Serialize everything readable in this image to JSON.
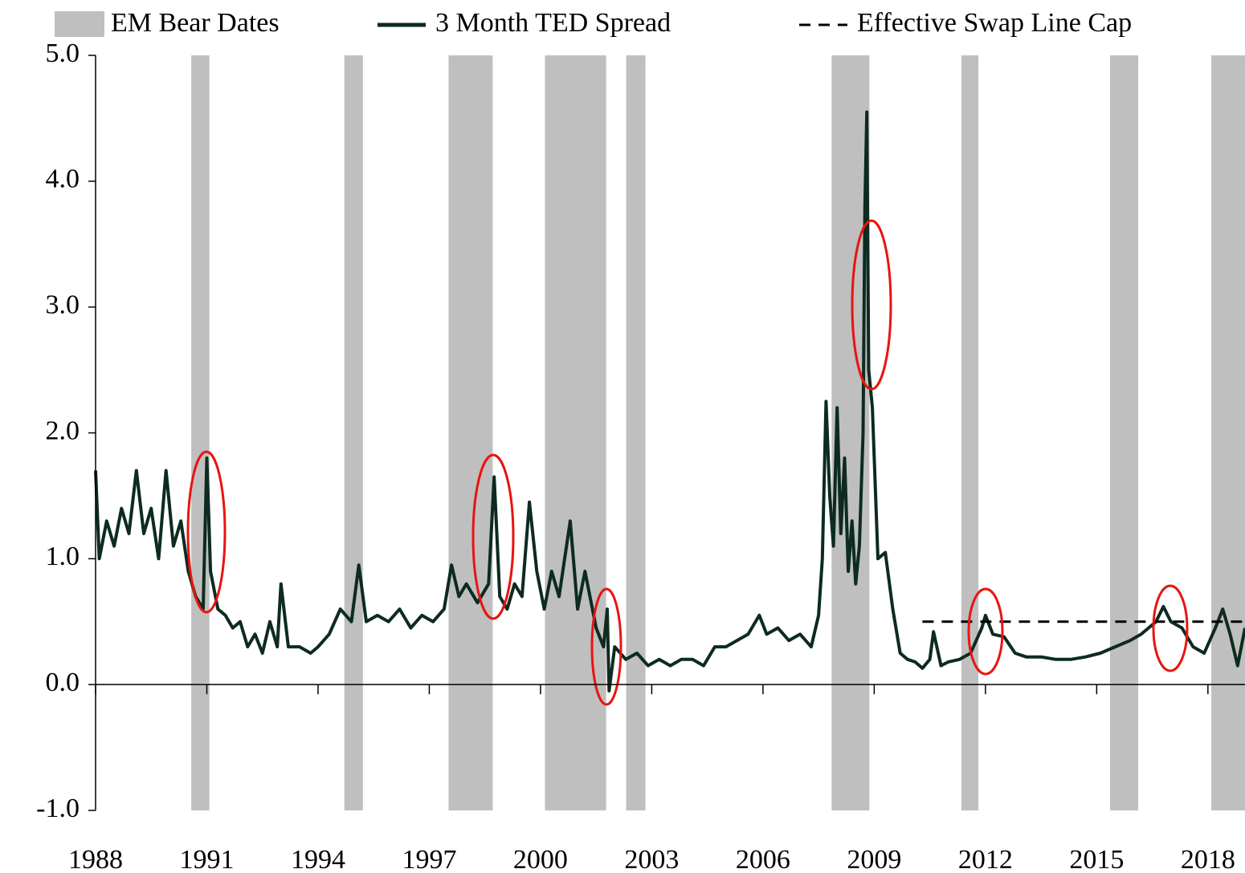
{
  "chart_data": {
    "type": "line",
    "bands": {
      "name": "EM Bear Dates",
      "color": "#bfbfbf",
      "ranges": [
        [
          1990.58,
          1991.07
        ],
        [
          1994.71,
          1995.21
        ],
        [
          1997.52,
          1998.71
        ],
        [
          2000.12,
          2001.77
        ],
        [
          2002.31,
          2002.83
        ],
        [
          2007.85,
          2008.87
        ],
        [
          2011.35,
          2011.81
        ],
        [
          2015.36,
          2016.12
        ],
        [
          2018.09,
          2019
        ]
      ]
    },
    "series": [
      {
        "name": "3 Month TED Spread",
        "color": "#0d2b1f",
        "x": [
          1988.0,
          1988.1,
          1988.3,
          1988.5,
          1988.7,
          1988.9,
          1989.1,
          1989.3,
          1989.5,
          1989.7,
          1989.9,
          1990.1,
          1990.3,
          1990.5,
          1990.7,
          1990.9,
          1991.0,
          1991.1,
          1991.3,
          1991.5,
          1991.7,
          1991.9,
          1992.1,
          1992.3,
          1992.5,
          1992.7,
          1992.9,
          1993.0,
          1993.2,
          1993.5,
          1993.8,
          1994.0,
          1994.3,
          1994.6,
          1994.9,
          1995.1,
          1995.3,
          1995.6,
          1995.9,
          1996.2,
          1996.5,
          1996.8,
          1997.1,
          1997.4,
          1997.6,
          1997.8,
          1998.0,
          1998.3,
          1998.6,
          1998.75,
          1998.9,
          1999.1,
          1999.3,
          1999.5,
          1999.7,
          1999.9,
          2000.1,
          2000.3,
          2000.5,
          2000.8,
          2001.0,
          2001.2,
          2001.5,
          2001.7,
          2001.8,
          2001.85,
          2002.0,
          2002.3,
          2002.6,
          2002.9,
          2003.2,
          2003.5,
          2003.8,
          2004.1,
          2004.4,
          2004.7,
          2005.0,
          2005.3,
          2005.6,
          2005.9,
          2006.1,
          2006.4,
          2006.7,
          2007.0,
          2007.3,
          2007.5,
          2007.6,
          2007.7,
          2007.8,
          2007.9,
          2008.0,
          2008.1,
          2008.2,
          2008.3,
          2008.4,
          2008.5,
          2008.6,
          2008.7,
          2008.75,
          2008.8,
          2008.85,
          2008.95,
          2009.1,
          2009.3,
          2009.5,
          2009.7,
          2009.9,
          2010.1,
          2010.3,
          2010.5,
          2010.6,
          2010.8,
          2011.0,
          2011.3,
          2011.6,
          2011.9,
          2012.0,
          2012.2,
          2012.5,
          2012.8,
          2013.1,
          2013.5,
          2013.9,
          2014.3,
          2014.7,
          2015.1,
          2015.5,
          2015.9,
          2016.2,
          2016.6,
          2016.8,
          2017.0,
          2017.3,
          2017.6,
          2017.9,
          2018.2,
          2018.4,
          2018.6,
          2018.8,
          2019.0
        ],
        "values": [
          1.7,
          1.0,
          1.3,
          1.1,
          1.4,
          1.2,
          1.7,
          1.2,
          1.4,
          1.0,
          1.7,
          1.1,
          1.3,
          0.9,
          0.7,
          0.6,
          1.8,
          0.9,
          0.6,
          0.55,
          0.45,
          0.5,
          0.3,
          0.4,
          0.25,
          0.5,
          0.3,
          0.8,
          0.3,
          0.3,
          0.25,
          0.3,
          0.4,
          0.6,
          0.5,
          0.95,
          0.5,
          0.55,
          0.5,
          0.6,
          0.45,
          0.55,
          0.5,
          0.6,
          0.95,
          0.7,
          0.8,
          0.65,
          0.8,
          1.65,
          0.7,
          0.6,
          0.8,
          0.7,
          1.45,
          0.9,
          0.6,
          0.9,
          0.7,
          1.3,
          0.6,
          0.9,
          0.45,
          0.3,
          0.6,
          -0.05,
          0.3,
          0.2,
          0.25,
          0.15,
          0.2,
          0.15,
          0.2,
          0.2,
          0.15,
          0.3,
          0.3,
          0.35,
          0.4,
          0.55,
          0.4,
          0.45,
          0.35,
          0.4,
          0.3,
          0.55,
          1.0,
          2.25,
          1.5,
          1.1,
          2.2,
          1.2,
          1.8,
          0.9,
          1.3,
          0.8,
          1.1,
          2.0,
          3.8,
          4.55,
          2.5,
          2.2,
          1.0,
          1.05,
          0.6,
          0.25,
          0.2,
          0.18,
          0.13,
          0.2,
          0.42,
          0.15,
          0.18,
          0.2,
          0.25,
          0.45,
          0.55,
          0.4,
          0.38,
          0.25,
          0.22,
          0.22,
          0.2,
          0.2,
          0.22,
          0.25,
          0.3,
          0.35,
          0.4,
          0.5,
          0.62,
          0.5,
          0.45,
          0.3,
          0.25,
          0.45,
          0.6,
          0.4,
          0.15,
          0.45
        ]
      },
      {
        "name": "Effective Swap Line Cap",
        "color": "#000000",
        "dashed": true,
        "x": [
          2010.3,
          2019
        ],
        "values": [
          0.5,
          0.5
        ]
      }
    ],
    "xlim": [
      1988,
      2019
    ],
    "xticks": [
      1988,
      1991,
      1994,
      1997,
      2000,
      2003,
      2006,
      2009,
      2012,
      2015,
      2018
    ],
    "ylim": [
      -1,
      5
    ],
    "yticks": [
      {
        "value": -1,
        "label": "-1.0"
      },
      {
        "value": 0,
        "label": "0.0"
      },
      {
        "value": 1,
        "label": "1.0"
      },
      {
        "value": 2,
        "label": "2.0"
      },
      {
        "value": 3,
        "label": "3.0"
      },
      {
        "value": 4,
        "label": "4.0"
      },
      {
        "value": 5,
        "label": "5.0"
      }
    ]
  }
}
